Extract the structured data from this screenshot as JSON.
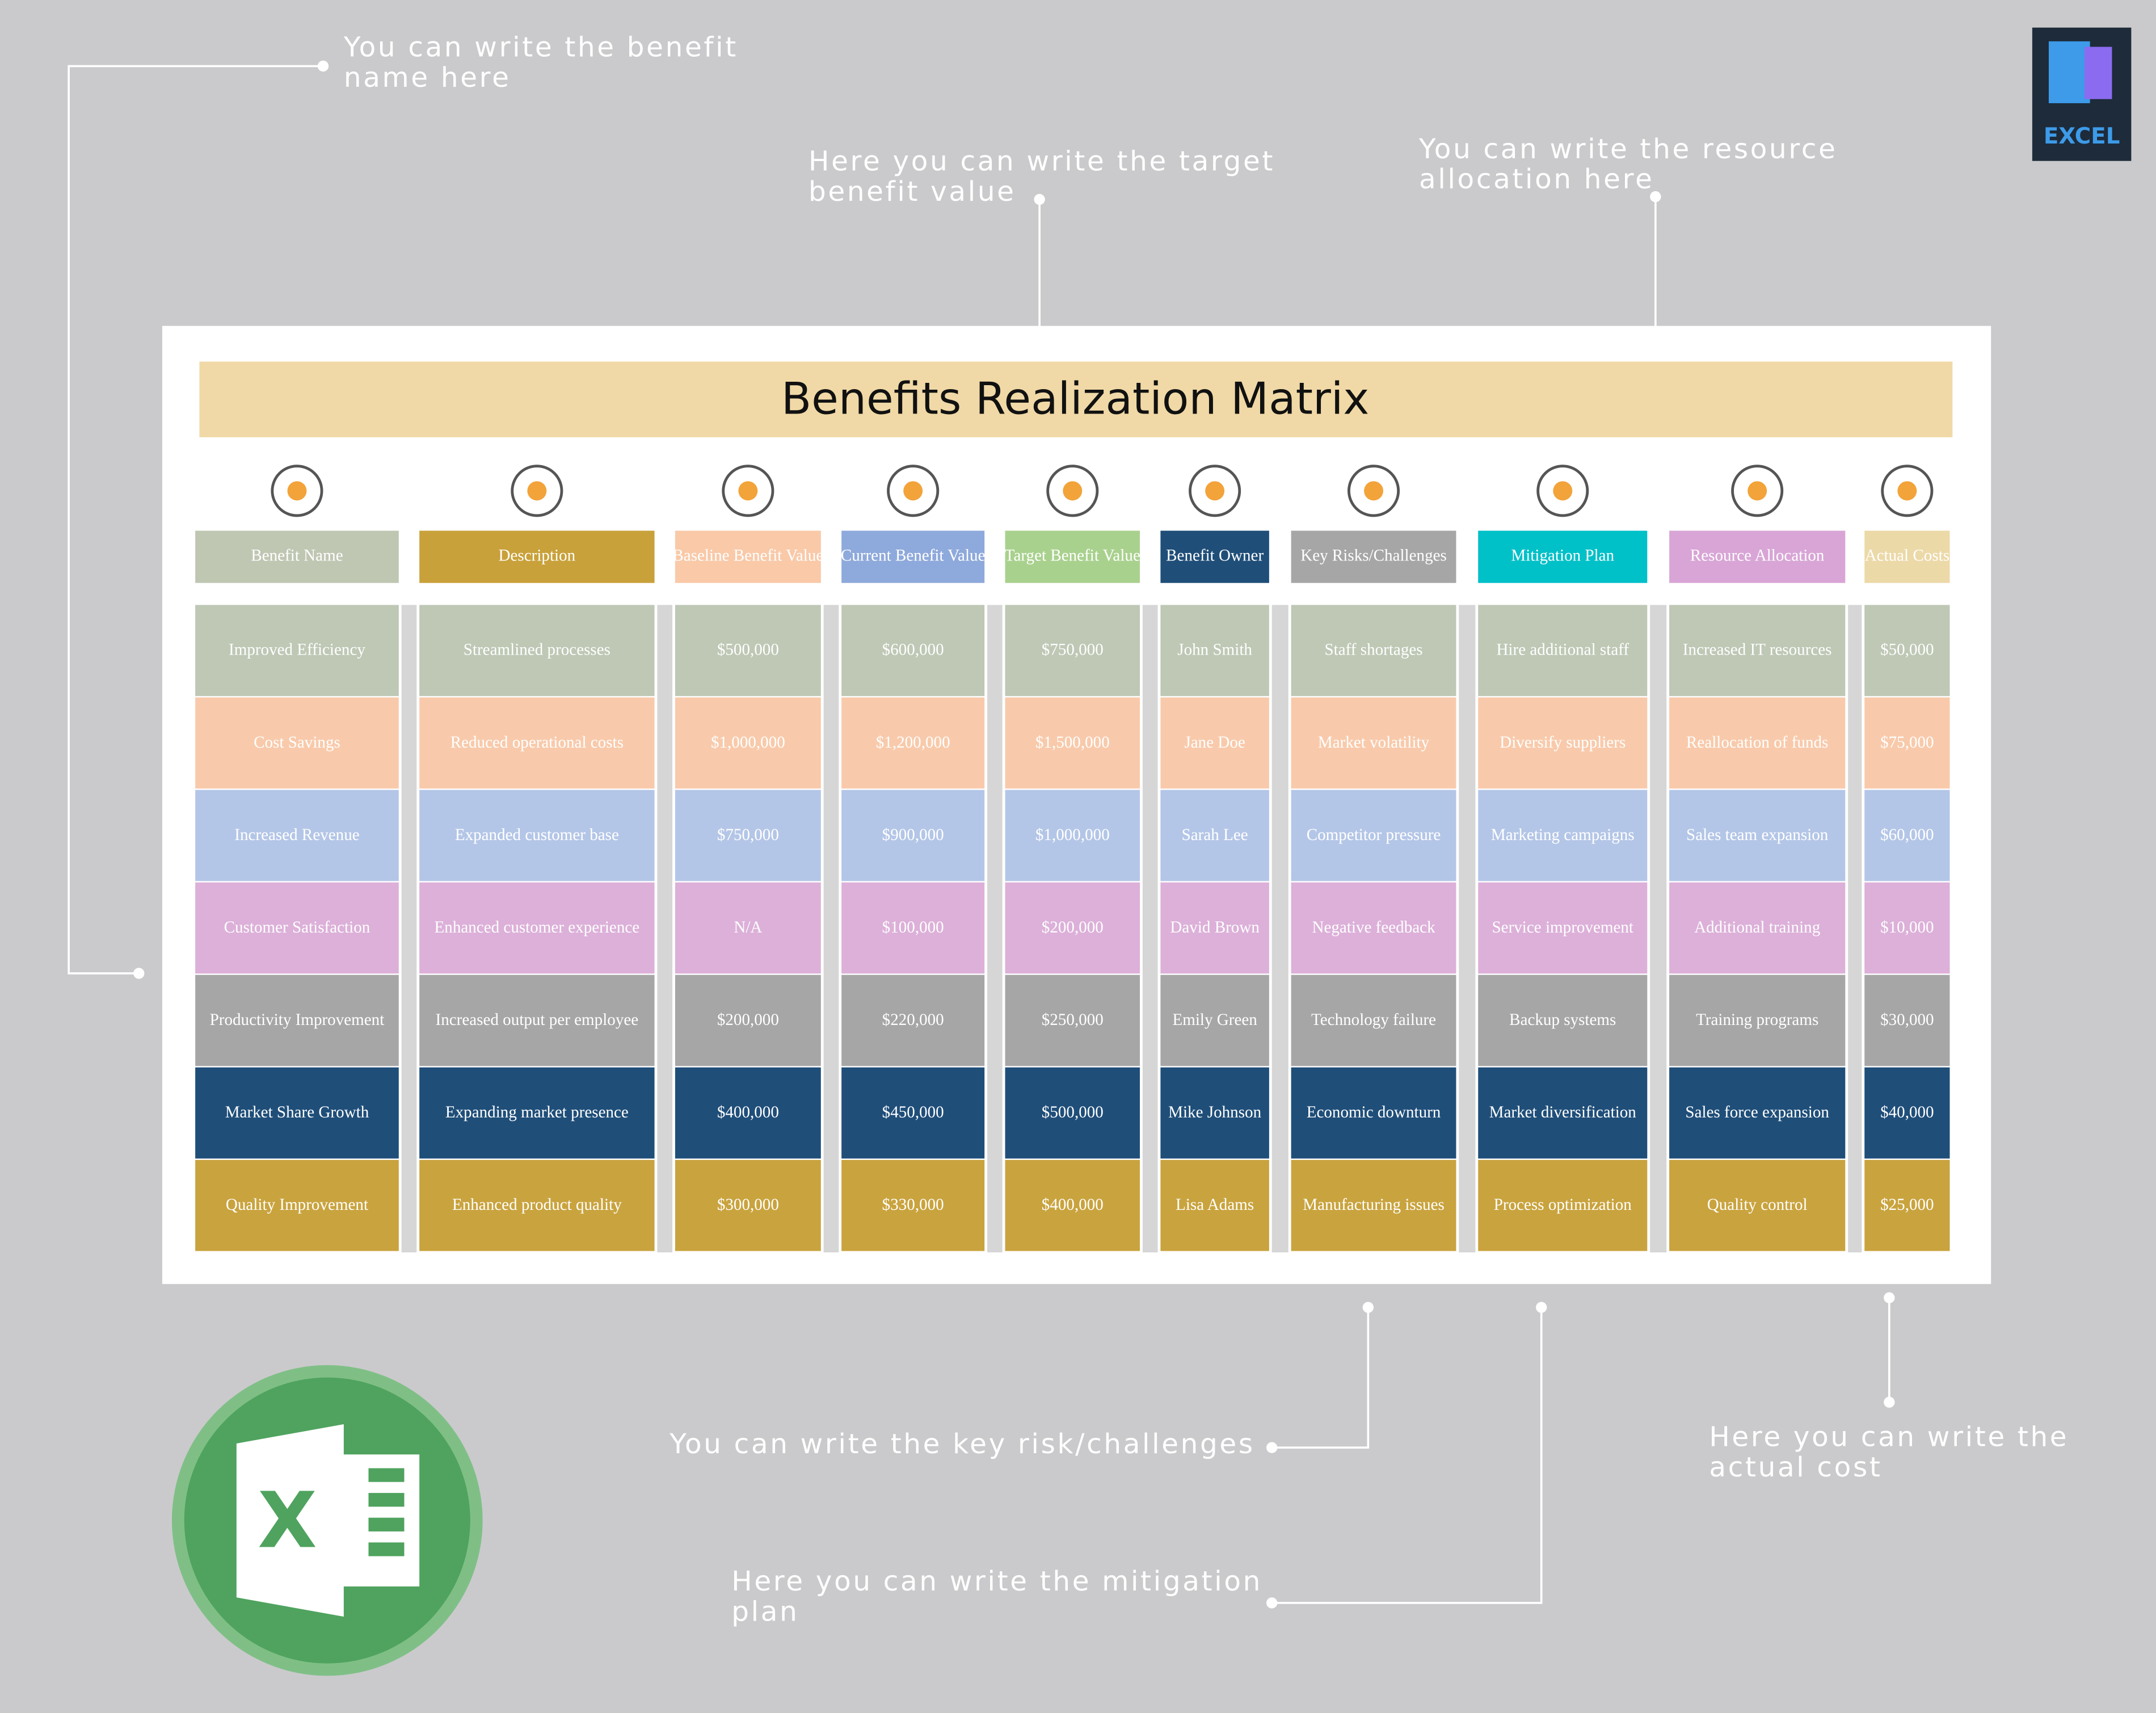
{
  "title": "Benefits Realization Matrix",
  "badge": "EXCEL",
  "table": {
    "headers": [
      "Benefit Name",
      "Description",
      "Baseline Benefit Value",
      "Current Benefit Value",
      "Target Benefit Value",
      "Benefit Owner",
      "Key Risks/Challenges",
      "Mitigation Plan",
      "Resource Allocation",
      "Actual Costs"
    ],
    "rows": [
      [
        "Improved Efficiency",
        "Streamlined processes",
        "$500,000",
        "$600,000",
        "$750,000",
        "John Smith",
        "Staff shortages",
        "Hire additional staff",
        "Increased IT resources",
        "$50,000"
      ],
      [
        "Cost Savings",
        "Reduced operational costs",
        "$1,000,000",
        "$1,200,000",
        "$1,500,000",
        "Jane Doe",
        "Market volatility",
        "Diversify suppliers",
        "Reallocation of funds",
        "$75,000"
      ],
      [
        "Increased Revenue",
        "Expanded customer base",
        "$750,000",
        "$900,000",
        "$1,000,000",
        "Sarah Lee",
        "Competitor pressure",
        "Marketing campaigns",
        "Sales team expansion",
        "$60,000"
      ],
      [
        "Customer Satisfaction",
        "Enhanced customer experience",
        "N/A",
        "$100,000",
        "$200,000",
        "David Brown",
        "Negative feedback",
        "Service improvement",
        "Additional training",
        "$10,000"
      ],
      [
        "Productivity Improvement",
        "Increased output per employee",
        "$200,000",
        "$220,000",
        "$250,000",
        "Emily Green",
        "Technology failure",
        "Backup systems",
        "Training programs",
        "$30,000"
      ],
      [
        "Market Share Growth",
        "Expanding market presence",
        "$400,000",
        "$450,000",
        "$500,000",
        "Mike Johnson",
        "Economic downturn",
        "Market diversification",
        "Sales force expansion",
        "$40,000"
      ],
      [
        "Quality Improvement",
        "Enhanced product quality",
        "$300,000",
        "$330,000",
        "$400,000",
        "Lisa Adams",
        "Manufacturing issues",
        "Process optimization",
        "Quality control",
        "$25,000"
      ]
    ]
  },
  "annotations": [
    {
      "lines": [
        "You can write the benefit",
        "name here"
      ]
    },
    {
      "lines": [
        "Here you can write the target",
        "benefit value"
      ]
    },
    {
      "lines": [
        "You can write the resource",
        "allocation here"
      ]
    },
    {
      "lines": [
        "You can write the key risk/challenges"
      ]
    },
    {
      "lines": [
        "Here you can write the mitigation",
        "plan"
      ]
    },
    {
      "lines": [
        "Here you can write the",
        "actual cost"
      ]
    }
  ]
}
